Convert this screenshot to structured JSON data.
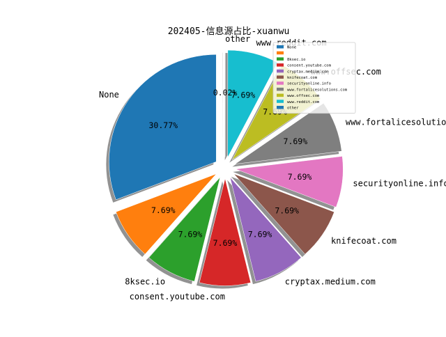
{
  "chart_data": {
    "type": "pie",
    "title": "202405-信息源占比-xuanwu",
    "categories": [
      "None",
      "",
      "8ksec.io",
      "consent.youtube.com",
      "cryptax.medium.com",
      "knifecoat.com",
      "securityonline.info",
      "www.fortalicesolutions.com",
      "www.offsec.com",
      "www.reddit.com",
      "other"
    ],
    "values": [
      30.77,
      7.69,
      7.69,
      7.69,
      7.69,
      7.69,
      7.69,
      7.69,
      7.69,
      7.69,
      0.02
    ],
    "value_labels": [
      "30.77%",
      "7.69%",
      "7.69%",
      "7.69%",
      "7.69%",
      "7.69%",
      "7.69%",
      "7.69%",
      "7.69%",
      "7.69%",
      "0.02%"
    ],
    "exploded": true,
    "shadow": true,
    "start_angle_deg": 90,
    "direction": "counterclockwise",
    "legend": {
      "position": "top-right",
      "labels": [
        "None",
        "",
        "8ksec.io",
        "consent.youtube.com",
        "cryptax.medium.com",
        "knifecoat.com",
        "securityonline.info",
        "www.fortalicesolutions.com",
        "www.offsec.com",
        "www.reddit.com",
        "other"
      ]
    }
  },
  "colors": [
    "#1f77b4",
    "#ff7f0e",
    "#2ca02c",
    "#d62728",
    "#9467bd",
    "#8c564b",
    "#e377c2",
    "#7f7f7f",
    "#bcbd22",
    "#17becf",
    "#1f77b4"
  ],
  "shadow_color": "#7f7f7f",
  "wedge_edge_color": "#ffffff"
}
